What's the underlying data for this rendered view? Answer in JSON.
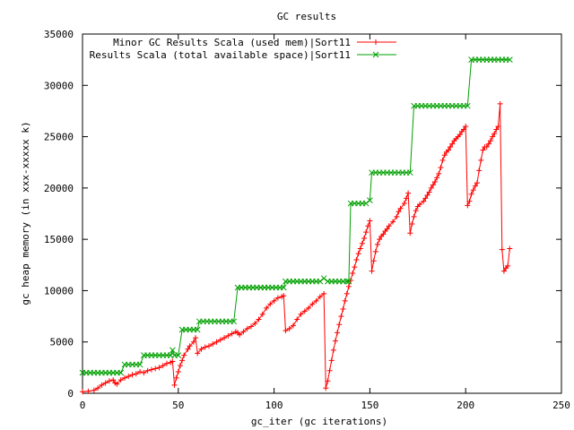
{
  "chart_data": {
    "type": "line",
    "title": "GC results",
    "xlabel": "gc_iter (gc iterations)",
    "ylabel": "gc heap memory (in xxx-xxxxx k)",
    "xlim": [
      0,
      250
    ],
    "ylim": [
      0,
      35000
    ],
    "xticks": [
      0,
      50,
      100,
      150,
      200,
      250
    ],
    "yticks": [
      0,
      5000,
      10000,
      15000,
      20000,
      25000,
      30000,
      35000
    ],
    "grid": false,
    "legend_position": "top-right",
    "series": [
      {
        "name": "Minor GC Results Scala (used mem)|Sort11",
        "color": "#ff0000",
        "marker": "plus",
        "points": [
          [
            0,
            150
          ],
          [
            3,
            200
          ],
          [
            6,
            300
          ],
          [
            8,
            500
          ],
          [
            10,
            800
          ],
          [
            12,
            1000
          ],
          [
            14,
            1200
          ],
          [
            16,
            1300
          ],
          [
            17,
            1000
          ],
          [
            18,
            900
          ],
          [
            20,
            1300
          ],
          [
            22,
            1500
          ],
          [
            24,
            1650
          ],
          [
            26,
            1800
          ],
          [
            28,
            1900
          ],
          [
            30,
            2100
          ],
          [
            32,
            2000
          ],
          [
            34,
            2200
          ],
          [
            36,
            2300
          ],
          [
            38,
            2400
          ],
          [
            40,
            2500
          ],
          [
            42,
            2700
          ],
          [
            44,
            2900
          ],
          [
            46,
            3000
          ],
          [
            47,
            3100
          ],
          [
            48,
            800
          ],
          [
            49,
            1500
          ],
          [
            50,
            2100
          ],
          [
            51,
            2700
          ],
          [
            52,
            3200
          ],
          [
            53,
            3700
          ],
          [
            55,
            4300
          ],
          [
            56,
            4600
          ],
          [
            58,
            5000
          ],
          [
            59,
            5400
          ],
          [
            60,
            3900
          ],
          [
            62,
            4300
          ],
          [
            64,
            4500
          ],
          [
            66,
            4600
          ],
          [
            68,
            4800
          ],
          [
            70,
            5000
          ],
          [
            72,
            5200
          ],
          [
            74,
            5400
          ],
          [
            76,
            5600
          ],
          [
            78,
            5800
          ],
          [
            80,
            6000
          ],
          [
            81,
            5900
          ],
          [
            82,
            5700
          ],
          [
            84,
            6000
          ],
          [
            86,
            6300
          ],
          [
            88,
            6500
          ],
          [
            90,
            6800
          ],
          [
            92,
            7200
          ],
          [
            94,
            7700
          ],
          [
            96,
            8300
          ],
          [
            98,
            8700
          ],
          [
            100,
            9000
          ],
          [
            102,
            9300
          ],
          [
            104,
            9400
          ],
          [
            105,
            9500
          ],
          [
            106,
            6100
          ],
          [
            108,
            6300
          ],
          [
            110,
            6600
          ],
          [
            112,
            7200
          ],
          [
            114,
            7700
          ],
          [
            116,
            8000
          ],
          [
            118,
            8300
          ],
          [
            120,
            8700
          ],
          [
            122,
            9000
          ],
          [
            124,
            9400
          ],
          [
            126,
            9700
          ],
          [
            127,
            500
          ],
          [
            128,
            1200
          ],
          [
            129,
            2200
          ],
          [
            130,
            3200
          ],
          [
            131,
            4200
          ],
          [
            132,
            5100
          ],
          [
            133,
            5900
          ],
          [
            134,
            6700
          ],
          [
            135,
            7500
          ],
          [
            136,
            8200
          ],
          [
            137,
            9000
          ],
          [
            138,
            9700
          ],
          [
            139,
            10400
          ],
          [
            140,
            11000
          ],
          [
            141,
            11700
          ],
          [
            142,
            12300
          ],
          [
            143,
            13000
          ],
          [
            144,
            13600
          ],
          [
            145,
            14100
          ],
          [
            146,
            14600
          ],
          [
            147,
            15100
          ],
          [
            148,
            15700
          ],
          [
            149,
            16300
          ],
          [
            150,
            16800
          ],
          [
            151,
            11900
          ],
          [
            152,
            12900
          ],
          [
            153,
            13800
          ],
          [
            154,
            14500
          ],
          [
            155,
            15000
          ],
          [
            156,
            15300
          ],
          [
            157,
            15500
          ],
          [
            158,
            15800
          ],
          [
            159,
            16000
          ],
          [
            160,
            16300
          ],
          [
            162,
            16700
          ],
          [
            164,
            17200
          ],
          [
            165,
            17700
          ],
          [
            166,
            18000
          ],
          [
            168,
            18500
          ],
          [
            169,
            19000
          ],
          [
            170,
            19500
          ],
          [
            171,
            15600
          ],
          [
            172,
            16500
          ],
          [
            173,
            17200
          ],
          [
            174,
            17800
          ],
          [
            175,
            18200
          ],
          [
            176,
            18400
          ],
          [
            178,
            18700
          ],
          [
            179,
            19000
          ],
          [
            180,
            19300
          ],
          [
            181,
            19600
          ],
          [
            182,
            20000
          ],
          [
            183,
            20300
          ],
          [
            184,
            20600
          ],
          [
            185,
            21000
          ],
          [
            186,
            21400
          ],
          [
            187,
            22000
          ],
          [
            188,
            22700
          ],
          [
            189,
            23200
          ],
          [
            190,
            23500
          ],
          [
            191,
            23700
          ],
          [
            192,
            24000
          ],
          [
            193,
            24300
          ],
          [
            194,
            24600
          ],
          [
            195,
            24800
          ],
          [
            196,
            25000
          ],
          [
            197,
            25200
          ],
          [
            198,
            25500
          ],
          [
            199,
            25700
          ],
          [
            200,
            26000
          ],
          [
            201,
            18300
          ],
          [
            202,
            18700
          ],
          [
            203,
            19400
          ],
          [
            204,
            19800
          ],
          [
            205,
            20200
          ],
          [
            206,
            20500
          ],
          [
            207,
            21700
          ],
          [
            208,
            22700
          ],
          [
            209,
            23700
          ],
          [
            210,
            24000
          ],
          [
            211,
            24000
          ],
          [
            212,
            24300
          ],
          [
            213,
            24600
          ],
          [
            214,
            25000
          ],
          [
            215,
            25300
          ],
          [
            216,
            25700
          ],
          [
            217,
            26000
          ],
          [
            218,
            28200
          ],
          [
            219,
            14000
          ],
          [
            220,
            11900
          ],
          [
            221,
            12200
          ],
          [
            222,
            12400
          ],
          [
            223,
            14100
          ]
        ]
      },
      {
        "name": "Results Scala (total available space)|Sort11",
        "color": "#00a000",
        "marker": "cross",
        "points": [
          [
            0,
            2000
          ],
          [
            2,
            2000
          ],
          [
            4,
            2000
          ],
          [
            6,
            2000
          ],
          [
            8,
            2000
          ],
          [
            10,
            2000
          ],
          [
            12,
            2000
          ],
          [
            14,
            2000
          ],
          [
            16,
            2000
          ],
          [
            18,
            2000
          ],
          [
            20,
            2000
          ],
          [
            22,
            2800
          ],
          [
            24,
            2800
          ],
          [
            26,
            2800
          ],
          [
            28,
            2800
          ],
          [
            30,
            2800
          ],
          [
            32,
            3700
          ],
          [
            34,
            3700
          ],
          [
            36,
            3700
          ],
          [
            38,
            3700
          ],
          [
            40,
            3700
          ],
          [
            42,
            3700
          ],
          [
            44,
            3700
          ],
          [
            46,
            3700
          ],
          [
            47,
            4200
          ],
          [
            48,
            3700
          ],
          [
            50,
            3700
          ],
          [
            52,
            6200
          ],
          [
            54,
            6200
          ],
          [
            56,
            6200
          ],
          [
            58,
            6200
          ],
          [
            60,
            6200
          ],
          [
            61,
            7000
          ],
          [
            63,
            7000
          ],
          [
            65,
            7000
          ],
          [
            67,
            7000
          ],
          [
            69,
            7000
          ],
          [
            71,
            7000
          ],
          [
            73,
            7000
          ],
          [
            75,
            7000
          ],
          [
            77,
            7000
          ],
          [
            79,
            7000
          ],
          [
            81,
            10300
          ],
          [
            83,
            10300
          ],
          [
            85,
            10300
          ],
          [
            87,
            10300
          ],
          [
            89,
            10300
          ],
          [
            91,
            10300
          ],
          [
            93,
            10300
          ],
          [
            95,
            10300
          ],
          [
            97,
            10300
          ],
          [
            99,
            10300
          ],
          [
            101,
            10300
          ],
          [
            103,
            10300
          ],
          [
            105,
            10300
          ],
          [
            106,
            10900
          ],
          [
            108,
            10900
          ],
          [
            110,
            10900
          ],
          [
            112,
            10900
          ],
          [
            114,
            10900
          ],
          [
            116,
            10900
          ],
          [
            118,
            10900
          ],
          [
            120,
            10900
          ],
          [
            122,
            10900
          ],
          [
            124,
            10900
          ],
          [
            126,
            11200
          ],
          [
            128,
            10900
          ],
          [
            130,
            10900
          ],
          [
            132,
            10900
          ],
          [
            134,
            10900
          ],
          [
            136,
            10900
          ],
          [
            138,
            10900
          ],
          [
            139,
            10900
          ],
          [
            140,
            18500
          ],
          [
            142,
            18500
          ],
          [
            144,
            18500
          ],
          [
            146,
            18500
          ],
          [
            148,
            18500
          ],
          [
            150,
            18800
          ],
          [
            151,
            21500
          ],
          [
            153,
            21500
          ],
          [
            155,
            21500
          ],
          [
            157,
            21500
          ],
          [
            159,
            21500
          ],
          [
            161,
            21500
          ],
          [
            163,
            21500
          ],
          [
            165,
            21500
          ],
          [
            167,
            21500
          ],
          [
            169,
            21500
          ],
          [
            171,
            21500
          ],
          [
            173,
            28000
          ],
          [
            175,
            28000
          ],
          [
            177,
            28000
          ],
          [
            179,
            28000
          ],
          [
            181,
            28000
          ],
          [
            183,
            28000
          ],
          [
            185,
            28000
          ],
          [
            187,
            28000
          ],
          [
            189,
            28000
          ],
          [
            191,
            28000
          ],
          [
            193,
            28000
          ],
          [
            195,
            28000
          ],
          [
            197,
            28000
          ],
          [
            199,
            28000
          ],
          [
            201,
            28000
          ],
          [
            203,
            32500
          ],
          [
            205,
            32500
          ],
          [
            207,
            32500
          ],
          [
            209,
            32500
          ],
          [
            211,
            32500
          ],
          [
            213,
            32500
          ],
          [
            215,
            32500
          ],
          [
            217,
            32500
          ],
          [
            219,
            32500
          ],
          [
            221,
            32500
          ],
          [
            223,
            32500
          ]
        ]
      }
    ]
  }
}
